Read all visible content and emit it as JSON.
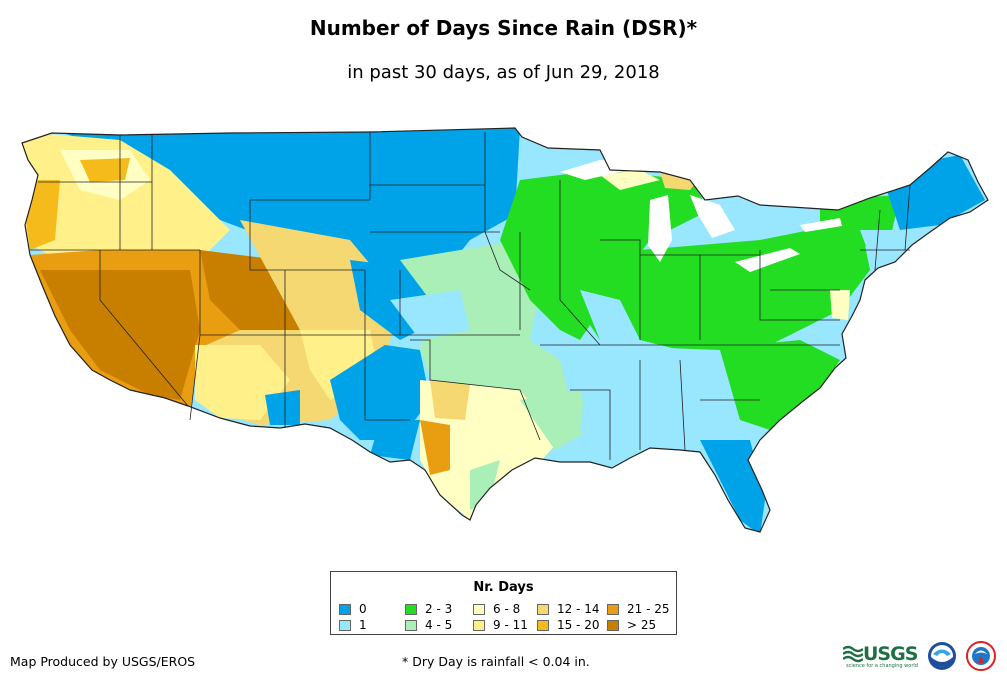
{
  "title": "Number of Days Since Rain (DSR)*",
  "subtitle": "in past 30 days, as of Jun 29, 2018",
  "legend": {
    "title": "Nr. Days",
    "items": [
      {
        "label": "0",
        "color": "#00a2e8"
      },
      {
        "label": "1",
        "color": "#99e6ff"
      },
      {
        "label": "2 - 3",
        "color": "#22dd22"
      },
      {
        "label": "4 - 5",
        "color": "#aaeeb8"
      },
      {
        "label": "6 - 8",
        "color": "#ffffc4"
      },
      {
        "label": "9 - 11",
        "color": "#fff08a"
      },
      {
        "label": "12 - 14",
        "color": "#f6d872"
      },
      {
        "label": "15 - 20",
        "color": "#f5bb1a"
      },
      {
        "label": "21 - 25",
        "color": "#e89e10"
      },
      {
        "label": "> 25",
        "color": "#c87f00"
      }
    ]
  },
  "credit": "Map Produced by USGS/EROS",
  "footnote": "* Dry Day is rainfall < 0.04 in.",
  "logos": {
    "usgs": "USGS",
    "usgs_tagline": "science for a changing world",
    "noaa": "noaa-logo",
    "nws": "nws-logo"
  }
}
